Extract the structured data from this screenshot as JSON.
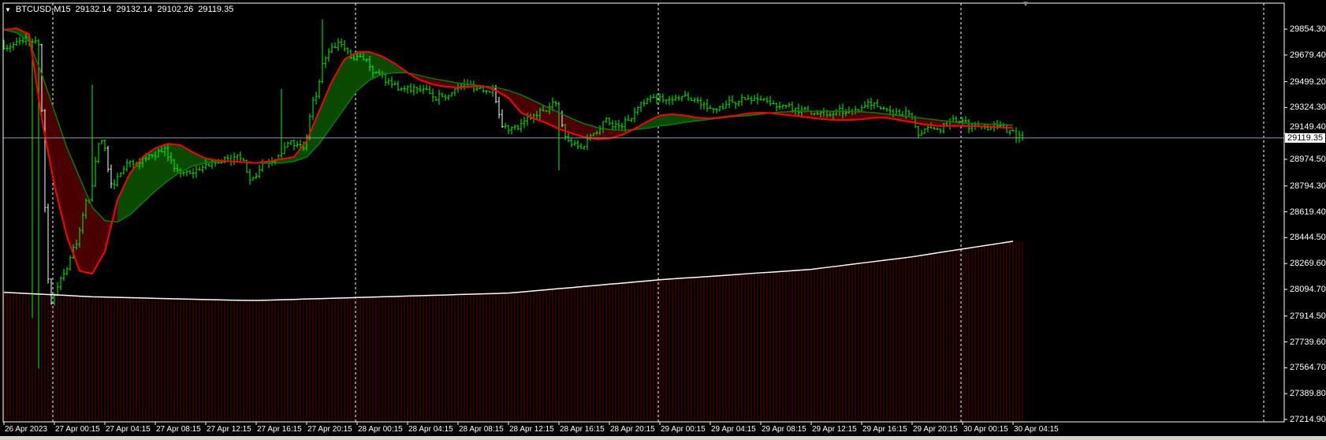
{
  "header": {
    "symbol_timeframe": "BTCUSD,M15",
    "open": "29132.14",
    "high": "29132.14",
    "low": "29102.26",
    "close": "29119.35",
    "menu_icon": "triangle-down-icon"
  },
  "current_price_label": "29119.35",
  "colors": {
    "background": "#000000",
    "bars": "#00ff00",
    "fast_ma": "#ff0000",
    "slow_ma": "#008000",
    "cloud_up": "#0a4a00",
    "cloud_down": "#4a0000",
    "long_ma": "#ffffff",
    "histogram": "#5c0000",
    "price_line": "#8899aa",
    "separators": "#ffffff"
  },
  "chart_data": {
    "type": "line",
    "title": "",
    "grid": false,
    "period_separators": true,
    "ylim": [
      27214.9,
      29900
    ],
    "y_ticks": [
      "29854.30",
      "29679.40",
      "29499.20",
      "29324.30",
      "29149.40",
      "28974.50",
      "28794.30",
      "28619.40",
      "28444.50",
      "28269.60",
      "28094.70",
      "27914.50",
      "27739.60",
      "27564.70",
      "27389.80",
      "27214.90"
    ],
    "x_ticks": [
      "26 Apr 2023",
      "27 Apr 00:15",
      "27 Apr 04:15",
      "27 Apr 08:15",
      "27 Apr 12:15",
      "27 Apr 16:15",
      "27 Apr 20:15",
      "28 Apr 00:15",
      "28 Apr 04:15",
      "28 Apr 08:15",
      "28 Apr 12:15",
      "28 Apr 16:15",
      "28 Apr 20:15",
      "29 Apr 00:15",
      "29 Apr 04:15",
      "29 Apr 08:15",
      "29 Apr 12:15",
      "29 Apr 16:15",
      "29 Apr 20:15",
      "30 Apr 00:15",
      "30 Apr 04:15"
    ],
    "bar_timeframe": "M15",
    "series_start": "26 Apr 2023 20:15",
    "series_step": "1h",
    "close_hourly": [
      29750,
      29800,
      29750,
      28000,
      28200,
      28400,
      28700,
      29100,
      28800,
      28950,
      28950,
      29000,
      29050,
      28900,
      28880,
      28920,
      28950,
      28980,
      28980,
      28850,
      28950,
      29000,
      29100,
      29050,
      29400,
      29700,
      29750,
      29650,
      29650,
      29550,
      29480,
      29450,
      29450,
      29420,
      29400,
      29450,
      29480,
      29460,
      29450,
      29200,
      29180,
      29250,
      29300,
      29350,
      29100,
      29050,
      29150,
      29250,
      29200,
      29250,
      29350,
      29380,
      29380,
      29400,
      29380,
      29320,
      29330,
      29360,
      29380,
      29380,
      29350,
      29340,
      29320,
      29300,
      29290,
      29280,
      29290,
      29300,
      29340,
      29320,
      29300,
      29280,
      29150,
      29180,
      29200,
      29230,
      29200,
      29190,
      29200,
      29170,
      29119.35
    ],
    "extremes": [
      {
        "time": "26 Apr 23:00",
        "price": 27560
      },
      {
        "time": "26 Apr 22:30",
        "price": 27900
      },
      {
        "time": "27 Apr 03:15",
        "price": 29480
      },
      {
        "time": "27 Apr 18:15",
        "price": 29450
      },
      {
        "time": "27 Apr 21:30",
        "price": 29920
      },
      {
        "time": "28 Apr 16:15",
        "price": 28900
      }
    ],
    "series": [
      {
        "role": "fast_ma",
        "values": [
          29850,
          29860,
          29820,
          29250,
          28800,
          28450,
          28220,
          28200,
          28350,
          28700,
          28880,
          28990,
          29050,
          29080,
          29070,
          29020,
          28980,
          28965,
          28960,
          28955,
          28950,
          28960,
          28975,
          28990,
          29100,
          29300,
          29500,
          29650,
          29700,
          29700,
          29670,
          29620,
          29560,
          29510,
          29480,
          29465,
          29460,
          29465,
          29470,
          29440,
          29390,
          29290,
          29250,
          29220,
          29180,
          29150,
          29125,
          29110,
          29115,
          29140,
          29180,
          29230,
          29270,
          29280,
          29270,
          29255,
          29250,
          29260,
          29270,
          29285,
          29290,
          29285,
          29275,
          29265,
          29255,
          29245,
          29240,
          29240,
          29245,
          29255,
          29255,
          29240,
          29225,
          29210,
          29200,
          29200,
          29200,
          29198,
          29195,
          29190,
          29185
        ]
      },
      {
        "role": "slow_ma",
        "values": [
          29850,
          29830,
          29770,
          29550,
          29300,
          29050,
          28850,
          28650,
          28560,
          28550,
          28600,
          28680,
          28760,
          28830,
          28890,
          28930,
          28950,
          28960,
          28960,
          28955,
          28950,
          28950,
          28950,
          28960,
          28990,
          29080,
          29200,
          29320,
          29440,
          29510,
          29550,
          29560,
          29560,
          29540,
          29520,
          29505,
          29490,
          29480,
          29470,
          29460,
          29440,
          29410,
          29370,
          29330,
          29290,
          29250,
          29215,
          29190,
          29175,
          29170,
          29175,
          29185,
          29200,
          29210,
          29225,
          29235,
          29245,
          29255,
          29265,
          29270,
          29280,
          29290,
          29295,
          29300,
          29300,
          29300,
          29300,
          29298,
          29295,
          29290,
          29280,
          29270,
          29260,
          29250,
          29240,
          29230,
          29222,
          29216,
          29212,
          29210,
          29205
        ]
      },
      {
        "role": "long_ma",
        "values": [
          28075,
          28071,
          28066,
          28062,
          28058,
          28054,
          28049,
          28045,
          28043,
          28041,
          28039,
          28037,
          28034,
          28032,
          28030,
          28028,
          28026,
          28024,
          28022,
          28021,
          28020,
          28022,
          28025,
          28027,
          28030,
          28032,
          28035,
          28037,
          28040,
          28042,
          28045,
          28047,
          28050,
          28052,
          28055,
          28057,
          28060,
          28062,
          28065,
          28067,
          28070,
          28077,
          28085,
          28092,
          28100,
          28107,
          28115,
          28122,
          28130,
          28137,
          28145,
          28152,
          28160,
          28166,
          28172,
          28177,
          28183,
          28189,
          28195,
          28201,
          28207,
          28212,
          28218,
          28224,
          28230,
          28241,
          28251,
          28262,
          28273,
          28283,
          28294,
          28304,
          28315,
          28328,
          28342,
          28355,
          28368,
          28381,
          28394,
          28407,
          28420
        ]
      }
    ],
    "current_price": 29119.35
  }
}
